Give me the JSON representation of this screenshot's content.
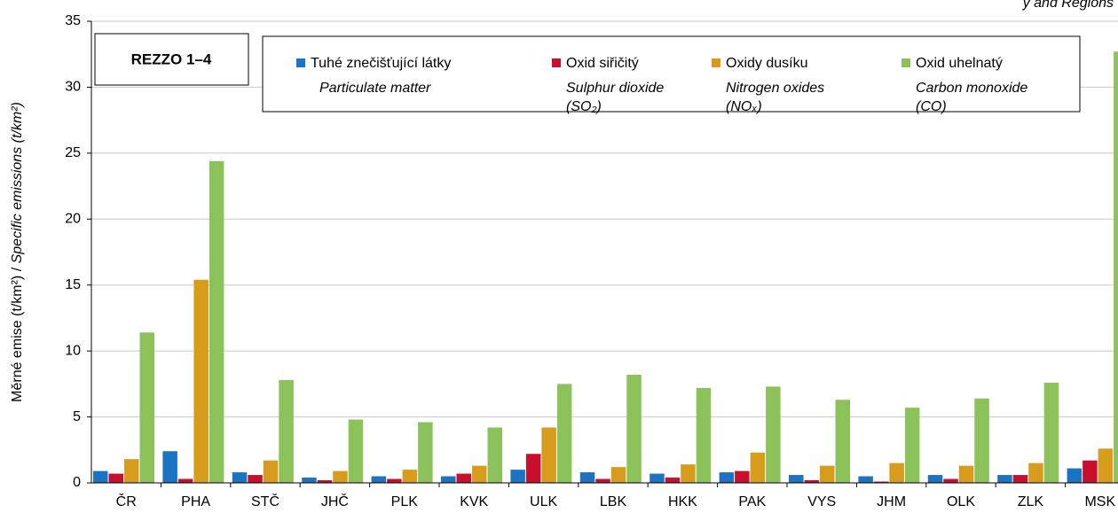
{
  "chart_data": {
    "type": "bar",
    "annotation": "y and Regions",
    "box_label": "REZZO 1–4",
    "ylabel": [
      "Měrné emise (t/km²)",
      " / ",
      "Specific emissions (t/km²)"
    ],
    "categories": [
      "ČR",
      "PHA",
      "STČ",
      "JHČ",
      "PLK",
      "KVK",
      "ULK",
      "LBK",
      "HKK",
      "PAK",
      "VYS",
      "JHM",
      "OLK",
      "ZLK",
      "MSK"
    ],
    "series": [
      {
        "name": "Tuhé znečišťující látky",
        "en": [
          "Particulate matter"
        ],
        "color": "#1b74c3",
        "values": [
          0.9,
          2.4,
          0.8,
          0.4,
          0.5,
          0.5,
          1.0,
          0.8,
          0.7,
          0.8,
          0.6,
          0.5,
          0.6,
          0.6,
          1.1
        ]
      },
      {
        "name": "Oxid siřičitý",
        "en": [
          "Sulphur dioxide",
          "(SO₂)"
        ],
        "color": "#c8102e",
        "values": [
          0.7,
          0.3,
          0.6,
          0.2,
          0.3,
          0.7,
          2.2,
          0.3,
          0.4,
          0.9,
          0.2,
          0.1,
          0.3,
          0.6,
          1.7
        ]
      },
      {
        "name": "Oxidy dusíku",
        "en": [
          "Nitrogen oxides",
          "(NOₓ)"
        ],
        "color": "#d89c1c",
        "values": [
          1.8,
          15.4,
          1.7,
          0.9,
          1.0,
          1.3,
          4.2,
          1.2,
          1.4,
          2.3,
          1.3,
          1.5,
          1.3,
          1.5,
          2.6
        ]
      },
      {
        "name": "Oxid uhelnatý",
        "en": [
          "Carbon monoxide",
          "(CO)"
        ],
        "color": "#8bc25a",
        "values": [
          11.4,
          24.4,
          7.8,
          4.8,
          4.6,
          4.2,
          7.5,
          8.2,
          7.2,
          7.3,
          6.3,
          5.7,
          6.4,
          7.6,
          32.7
        ]
      }
    ],
    "ylim": [
      0,
      35
    ],
    "yticks": [
      0,
      5,
      10,
      15,
      20,
      25,
      30,
      35
    ],
    "grid": true
  }
}
